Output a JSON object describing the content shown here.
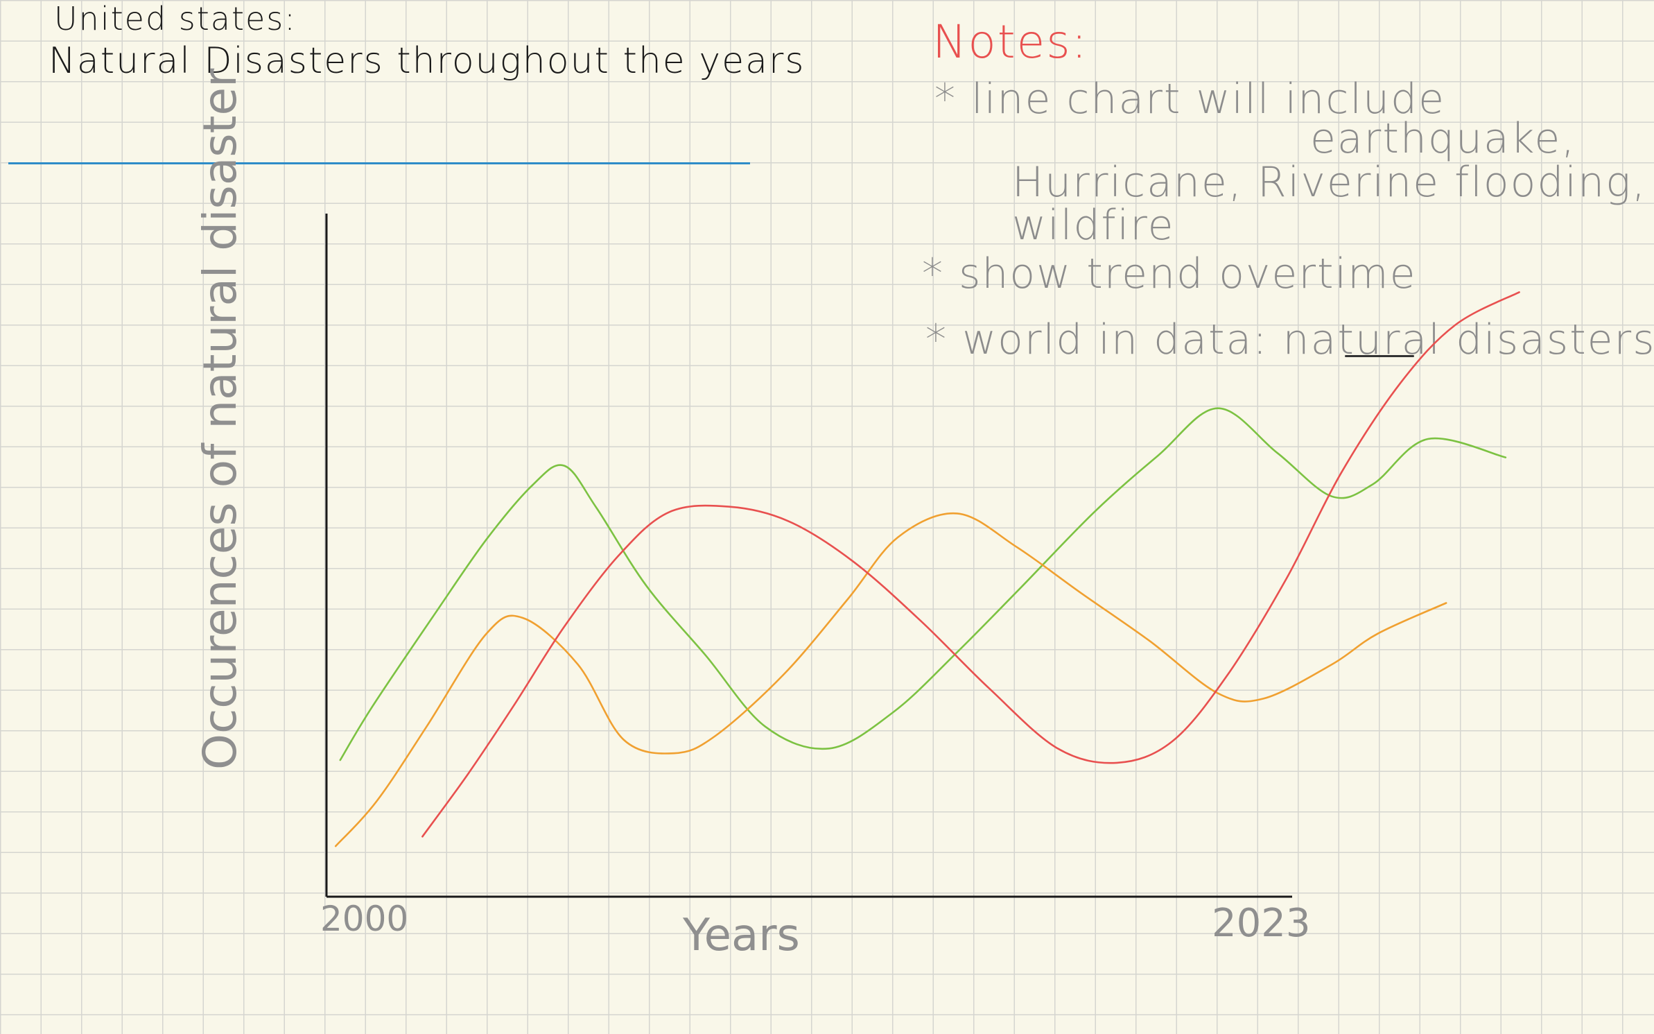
{
  "title": {
    "line1": "United states:",
    "line2": "Natural Disasters throughout the years"
  },
  "notes": {
    "heading": "Notes:",
    "items": [
      "* line chart will include",
      "earthquake,",
      "Hurricane, Riverine flooding,",
      "wildfire",
      "* show trend overtime",
      "* world in data: natural disasters"
    ]
  },
  "colors": {
    "earthquake": "#e8504f",
    "hurricane": "#7cc242",
    "flooding": "#f0a030",
    "wildfire": "#7cc242",
    "background": "#f9f7e9",
    "grid": "#d5d5d0",
    "rule": "#2e8cc8"
  },
  "chart_data": {
    "type": "line",
    "title": "",
    "xlabel": "Years",
    "ylabel": "Occurences of natural disaster",
    "x_ticks": [
      "2000",
      "2023"
    ],
    "xlim": [
      2000,
      2026.5
    ],
    "ylim": [
      0,
      100
    ],
    "grid": true,
    "series": [
      {
        "color": "#7cc242",
        "points": [
          [
            0.3,
            20
          ],
          [
            1,
            27.8
          ],
          [
            2.4,
            41.7
          ],
          [
            3.5,
            52.3
          ],
          [
            4.5,
            60.2
          ],
          [
            5.2,
            63.1
          ],
          [
            5.9,
            57
          ],
          [
            7,
            45.5
          ],
          [
            8.3,
            35.3
          ],
          [
            9.6,
            24.9
          ],
          [
            11,
            21.7
          ],
          [
            12.4,
            27
          ],
          [
            13.8,
            35.8
          ],
          [
            15.2,
            45.3
          ],
          [
            16.8,
            56.3
          ],
          [
            18.2,
            64.6
          ],
          [
            19.5,
            71.5
          ],
          [
            20.8,
            65
          ],
          [
            22,
            58.6
          ],
          [
            22.9,
            60.4
          ],
          [
            24.1,
            67
          ],
          [
            25.8,
            64.3
          ]
        ]
      },
      {
        "color": "#f0a030",
        "points": [
          [
            0.2,
            7.4
          ],
          [
            1.1,
            14
          ],
          [
            2.2,
            25
          ],
          [
            3.5,
            38.5
          ],
          [
            4.3,
            40.8
          ],
          [
            5.5,
            34
          ],
          [
            6.5,
            23
          ],
          [
            7.6,
            21
          ],
          [
            8.5,
            23.5
          ],
          [
            10,
            32.5
          ],
          [
            11.4,
            43.5
          ],
          [
            12.5,
            52.6
          ],
          [
            13.8,
            56.1
          ],
          [
            15.1,
            51.2
          ],
          [
            16.5,
            44.5
          ],
          [
            18,
            37.5
          ],
          [
            19.5,
            29.8
          ],
          [
            20.5,
            29
          ],
          [
            22,
            34
          ],
          [
            23,
            38.5
          ],
          [
            24.5,
            43
          ]
        ]
      },
      {
        "color": "#e8504f",
        "points": [
          [
            2.1,
            8.8
          ],
          [
            3.1,
            18
          ],
          [
            4.1,
            28
          ],
          [
            5.2,
            39.5
          ],
          [
            6.4,
            50
          ],
          [
            7.5,
            56.3
          ],
          [
            8.8,
            57.1
          ],
          [
            10.1,
            55
          ],
          [
            11.5,
            49.2
          ],
          [
            13,
            40.4
          ],
          [
            14.5,
            30.5
          ],
          [
            16,
            21.7
          ],
          [
            17.3,
            19.6
          ],
          [
            18.5,
            22.7
          ],
          [
            19.7,
            32.3
          ],
          [
            21,
            46.5
          ],
          [
            22.2,
            62
          ],
          [
            23.5,
            75.2
          ],
          [
            24.7,
            83.7
          ],
          [
            26.1,
            88.5
          ]
        ]
      }
    ]
  }
}
